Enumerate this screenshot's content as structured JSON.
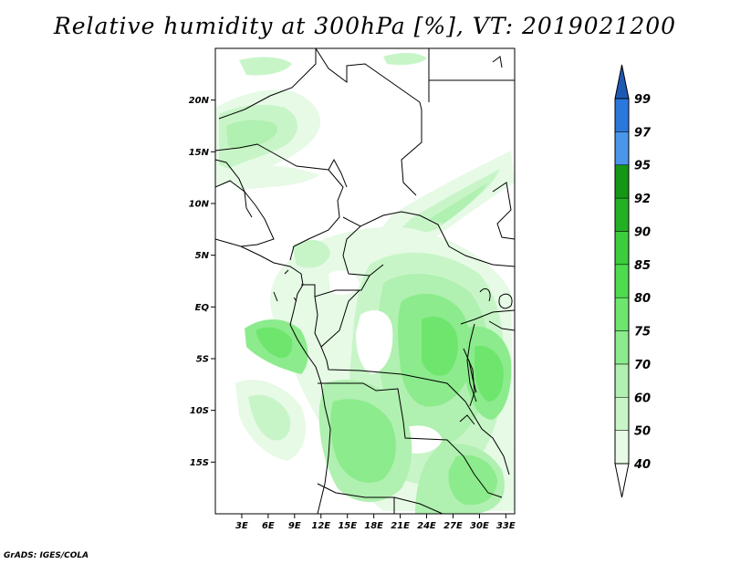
{
  "title": "Relative humidity at 300hPa [%], VT: 2019021200",
  "credit": "GrADS: IGES/COLA",
  "map": {
    "lon_range": [
      0,
      34
    ],
    "lat_range": [
      -20,
      25
    ],
    "lat_ticks": [
      {
        "value": 20,
        "label": "20N"
      },
      {
        "value": 15,
        "label": "15N"
      },
      {
        "value": 10,
        "label": "10N"
      },
      {
        "value": 5,
        "label": "5N"
      },
      {
        "value": 0,
        "label": "EQ"
      },
      {
        "value": -5,
        "label": "5S"
      },
      {
        "value": -10,
        "label": "10S"
      },
      {
        "value": -15,
        "label": "15S"
      }
    ],
    "lon_ticks": [
      {
        "value": 3,
        "label": "3E"
      },
      {
        "value": 6,
        "label": "6E"
      },
      {
        "value": 9,
        "label": "9E"
      },
      {
        "value": 12,
        "label": "12E"
      },
      {
        "value": 15,
        "label": "15E"
      },
      {
        "value": 18,
        "label": "18E"
      },
      {
        "value": 21,
        "label": "21E"
      },
      {
        "value": 24,
        "label": "24E"
      },
      {
        "value": 27,
        "label": "27E"
      },
      {
        "value": 30,
        "label": "30E"
      },
      {
        "value": 33,
        "label": "33E"
      }
    ]
  },
  "colorbar": {
    "levels": [
      {
        "label": "40",
        "color": "#e6fae6"
      },
      {
        "label": "50",
        "color": "#c8f5c8"
      },
      {
        "label": "60",
        "color": "#b0f0b0"
      },
      {
        "label": "70",
        "color": "#8ceb8c"
      },
      {
        "label": "75",
        "color": "#6ee66e"
      },
      {
        "label": "80",
        "color": "#4fdb4f"
      },
      {
        "label": "85",
        "color": "#3ccd3c"
      },
      {
        "label": "90",
        "color": "#24b024"
      },
      {
        "label": "92",
        "color": "#159615"
      },
      {
        "label": "95",
        "color": "#4a96eb"
      },
      {
        "label": "97",
        "color": "#2a78dc"
      },
      {
        "label": "99",
        "color": "#1e5ab4"
      }
    ],
    "below_color": "#ffffff",
    "above_color": "#1e5ab4"
  }
}
